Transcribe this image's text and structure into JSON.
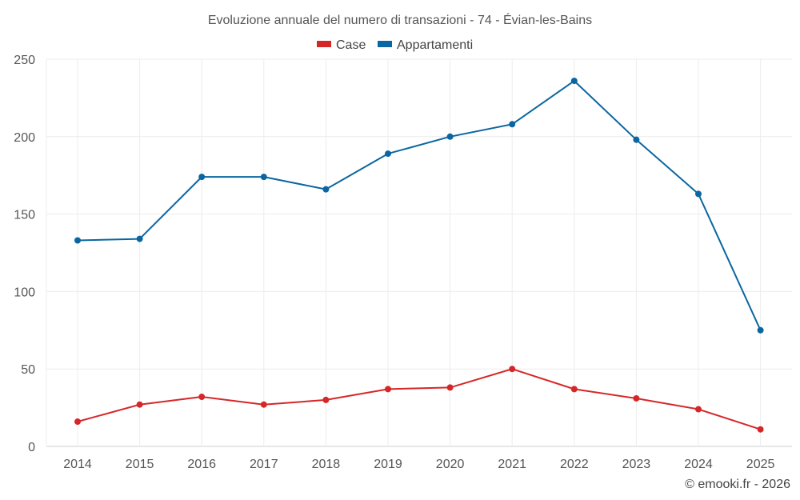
{
  "chart_data": {
    "type": "line",
    "title": "Evoluzione annuale del numero di transazioni - 74 - Évian-les-Bains",
    "xlabel": "",
    "ylabel": "",
    "ylim": [
      0,
      250
    ],
    "yticks": [
      0,
      50,
      100,
      150,
      200,
      250
    ],
    "grid": true,
    "legend_position": "top-center",
    "categories": [
      "2014",
      "2015",
      "2016",
      "2017",
      "2018",
      "2019",
      "2020",
      "2021",
      "2022",
      "2023",
      "2024",
      "2025"
    ],
    "series": [
      {
        "name": "Case",
        "color": "#d62728",
        "values": [
          16,
          27,
          32,
          27,
          30,
          37,
          38,
          50,
          37,
          31,
          24,
          11
        ]
      },
      {
        "name": "Appartamenti",
        "color": "#0a66a0",
        "values": [
          133,
          134,
          174,
          174,
          166,
          189,
          200,
          208,
          236,
          198,
          163,
          75
        ]
      }
    ]
  },
  "credit": "© emooki.fr - 2026"
}
